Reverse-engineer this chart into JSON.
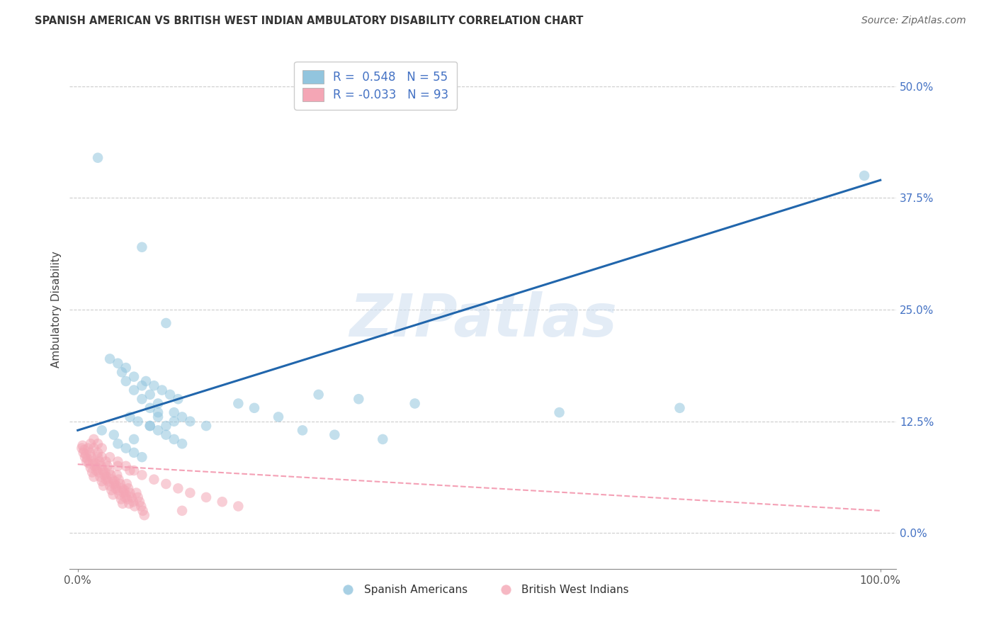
{
  "title": "SPANISH AMERICAN VS BRITISH WEST INDIAN AMBULATORY DISABILITY CORRELATION CHART",
  "source": "Source: ZipAtlas.com",
  "ylabel": "Ambulatory Disability",
  "xlim": [
    -0.01,
    1.02
  ],
  "ylim": [
    -0.04,
    0.54
  ],
  "xticks": [
    0.0,
    1.0
  ],
  "xticklabels": [
    "0.0%",
    "100.0%"
  ],
  "yticks": [
    0.0,
    0.125,
    0.25,
    0.375,
    0.5
  ],
  "yticklabels": [
    "0.0%",
    "12.5%",
    "25.0%",
    "37.5%",
    "50.0%"
  ],
  "r_spanish": 0.548,
  "n_spanish": 55,
  "r_bwi": -0.033,
  "n_bwi": 93,
  "blue_color": "#92c5de",
  "pink_color": "#f4a6b5",
  "blue_line_color": "#2166ac",
  "pink_line_color": "#f4a0b5",
  "watermark": "ZIPatlas",
  "sp_line_x": [
    0.0,
    1.0
  ],
  "sp_line_y": [
    0.115,
    0.395
  ],
  "bwi_line_x": [
    0.0,
    1.0
  ],
  "bwi_line_y": [
    0.077,
    0.025
  ],
  "spanish_x": [
    0.025,
    0.08,
    0.04,
    0.05,
    0.06,
    0.055,
    0.07,
    0.06,
    0.08,
    0.07,
    0.09,
    0.08,
    0.1,
    0.09,
    0.12,
    0.1,
    0.11,
    0.12,
    0.11,
    0.085,
    0.095,
    0.105,
    0.115,
    0.125,
    0.2,
    0.22,
    0.3,
    0.35,
    0.42,
    0.6,
    0.75,
    0.98,
    0.03,
    0.045,
    0.07,
    0.065,
    0.075,
    0.09,
    0.1,
    0.13,
    0.14,
    0.16,
    0.25,
    0.28,
    0.32,
    0.38,
    0.05,
    0.06,
    0.07,
    0.08,
    0.09,
    0.1,
    0.11,
    0.12,
    0.13
  ],
  "spanish_y": [
    0.42,
    0.32,
    0.195,
    0.19,
    0.185,
    0.18,
    0.175,
    0.17,
    0.165,
    0.16,
    0.155,
    0.15,
    0.145,
    0.14,
    0.135,
    0.13,
    0.235,
    0.125,
    0.12,
    0.17,
    0.165,
    0.16,
    0.155,
    0.15,
    0.145,
    0.14,
    0.155,
    0.15,
    0.145,
    0.135,
    0.14,
    0.4,
    0.115,
    0.11,
    0.105,
    0.13,
    0.125,
    0.12,
    0.135,
    0.13,
    0.125,
    0.12,
    0.13,
    0.115,
    0.11,
    0.105,
    0.1,
    0.095,
    0.09,
    0.085,
    0.12,
    0.115,
    0.11,
    0.105,
    0.1
  ],
  "bwi_x": [
    0.005,
    0.007,
    0.009,
    0.011,
    0.013,
    0.015,
    0.017,
    0.019,
    0.021,
    0.023,
    0.025,
    0.027,
    0.029,
    0.031,
    0.033,
    0.035,
    0.037,
    0.039,
    0.041,
    0.043,
    0.045,
    0.047,
    0.049,
    0.051,
    0.053,
    0.055,
    0.057,
    0.059,
    0.061,
    0.063,
    0.065,
    0.067,
    0.069,
    0.071,
    0.073,
    0.075,
    0.077,
    0.079,
    0.081,
    0.083,
    0.006,
    0.008,
    0.01,
    0.012,
    0.014,
    0.016,
    0.018,
    0.02,
    0.022,
    0.024,
    0.026,
    0.028,
    0.03,
    0.032,
    0.034,
    0.036,
    0.038,
    0.04,
    0.042,
    0.044,
    0.046,
    0.048,
    0.05,
    0.052,
    0.054,
    0.056,
    0.058,
    0.06,
    0.062,
    0.064,
    0.016,
    0.02,
    0.025,
    0.03,
    0.035,
    0.05,
    0.065,
    0.08,
    0.095,
    0.11,
    0.125,
    0.14,
    0.16,
    0.18,
    0.2,
    0.13,
    0.02,
    0.025,
    0.03,
    0.04,
    0.05,
    0.06,
    0.07
  ],
  "bwi_y": [
    0.095,
    0.09,
    0.085,
    0.08,
    0.095,
    0.09,
    0.085,
    0.08,
    0.075,
    0.07,
    0.085,
    0.08,
    0.075,
    0.07,
    0.065,
    0.06,
    0.075,
    0.07,
    0.065,
    0.06,
    0.055,
    0.05,
    0.065,
    0.06,
    0.055,
    0.05,
    0.045,
    0.04,
    0.055,
    0.05,
    0.045,
    0.04,
    0.035,
    0.03,
    0.045,
    0.04,
    0.035,
    0.03,
    0.025,
    0.02,
    0.098,
    0.093,
    0.088,
    0.083,
    0.078,
    0.073,
    0.068,
    0.063,
    0.078,
    0.073,
    0.068,
    0.063,
    0.058,
    0.053,
    0.068,
    0.063,
    0.058,
    0.053,
    0.048,
    0.043,
    0.058,
    0.053,
    0.048,
    0.043,
    0.038,
    0.033,
    0.048,
    0.043,
    0.038,
    0.033,
    0.1,
    0.095,
    0.09,
    0.085,
    0.08,
    0.075,
    0.07,
    0.065,
    0.06,
    0.055,
    0.05,
    0.045,
    0.04,
    0.035,
    0.03,
    0.025,
    0.105,
    0.1,
    0.095,
    0.085,
    0.08,
    0.075,
    0.07
  ]
}
